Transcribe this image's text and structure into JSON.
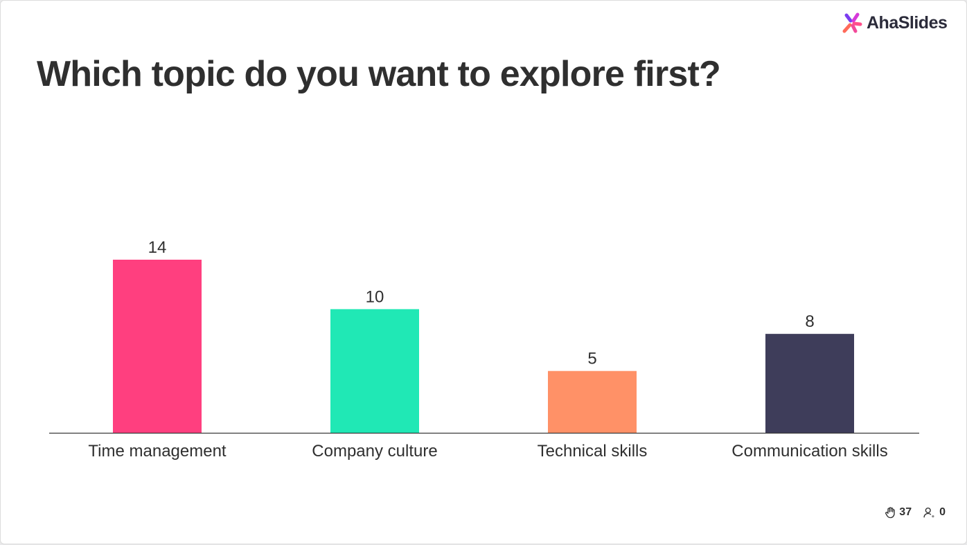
{
  "brand": {
    "name": "AhaSlides"
  },
  "slide": {
    "question": "Which topic do you want to explore first?"
  },
  "footer": {
    "responses_count": "37",
    "responses_icon": "raised-hand-icon",
    "audience_count": "0",
    "audience_icon": "person-icon"
  },
  "colors": {
    "accent_pink": "#ff3f7f",
    "accent_green": "#20e8b5",
    "accent_orange": "#ff9167",
    "accent_navy": "#3e3d5a",
    "title": "#2f2f2f"
  },
  "chart_data": {
    "type": "bar",
    "categories": [
      "Time management",
      "Company culture",
      "Technical skills",
      "Communication skills"
    ],
    "values": [
      14,
      10,
      5,
      8
    ],
    "colors": [
      "#ff3f7f",
      "#20e8b5",
      "#ff9167",
      "#3e3d5a"
    ],
    "title": "",
    "xlabel": "",
    "ylabel": "",
    "ylim": [
      0,
      14
    ],
    "grid": false,
    "data_labels": true
  }
}
